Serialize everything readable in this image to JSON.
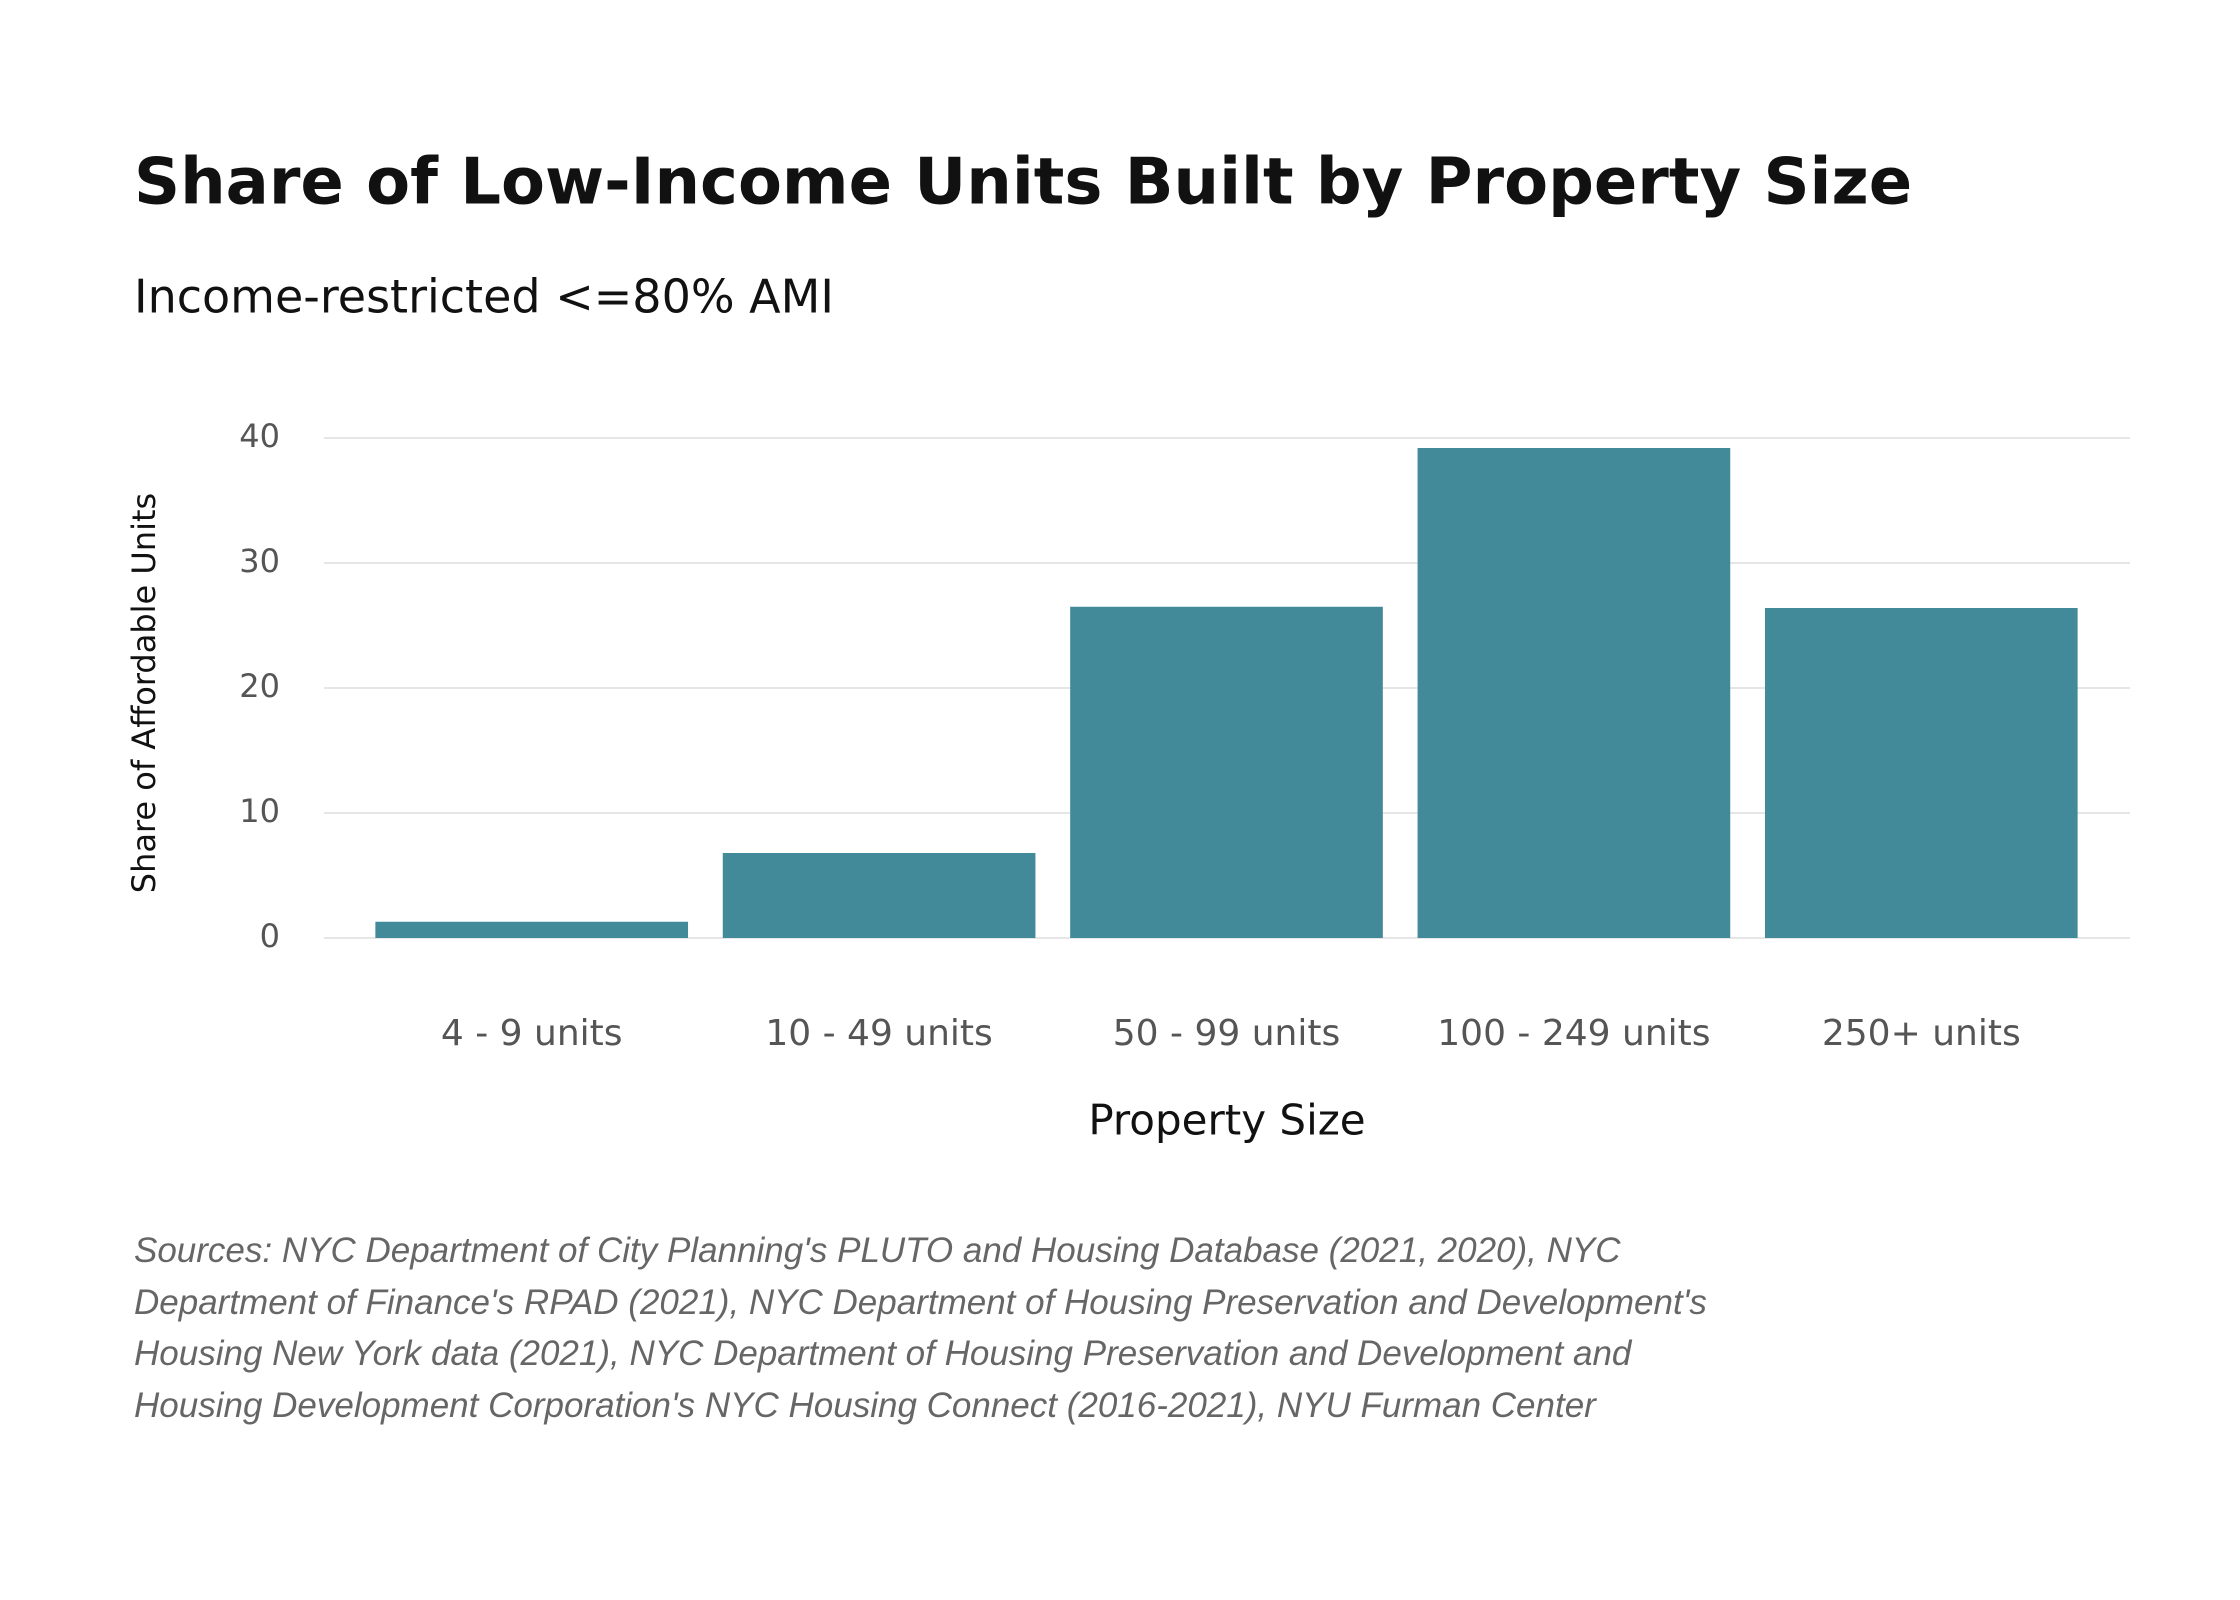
{
  "chart_data": {
    "type": "bar",
    "title": "Share of Low-Income Units Built by Property Size",
    "subtitle": "Income-restricted <=80% AMI",
    "x_label": "Property Size",
    "y_label": "Share of Affordable Units",
    "categories": [
      "4 - 9 units",
      "10 - 49 units",
      "50 - 99 units",
      "100 - 249 units",
      "250+ units"
    ],
    "values": [
      1.3,
      6.8,
      26.5,
      39.2,
      26.4
    ],
    "color": "#428a99",
    "ylim": [
      0,
      40
    ],
    "yticks": [
      0,
      10,
      20,
      30,
      40
    ],
    "grid": true,
    "source": "Sources: NYC Department of City Planning's PLUTO and Housing Database (2021, 2020), NYC Department of Finance's RPAD (2021), NYC Department of Housing Preservation and Development's Housing New York data (2021), NYC Department of Housing Preservation and Development and Housing Development Corporation's NYC Housing Connect (2016-2021), NYU Furman Center"
  }
}
